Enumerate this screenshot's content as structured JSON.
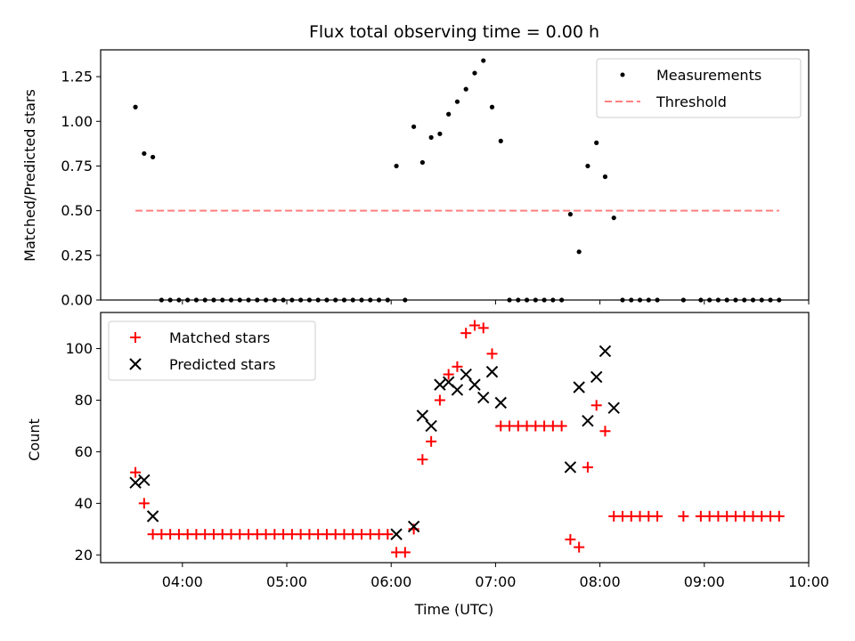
{
  "chart_data": [
    {
      "type": "scatter",
      "title": "Flux total observing time = 0.00 h",
      "xlabel": "",
      "ylabel": "Matched/Predicted stars",
      "ylim": [
        0,
        1.4
      ],
      "yticks": [
        "0.00",
        "0.25",
        "0.50",
        "0.75",
        "1.00",
        "1.25"
      ],
      "legend_position": "top-right",
      "series": [
        {
          "name": "Measurements",
          "marker": "dot",
          "color": "#000000",
          "points": [
            [
              "03:33",
              1.08
            ],
            [
              "03:38",
              0.82
            ],
            [
              "03:43",
              0.8
            ],
            [
              "03:48",
              0.0
            ],
            [
              "03:53",
              0.0
            ],
            [
              "03:58",
              0.0
            ],
            [
              "04:03",
              0.0
            ],
            [
              "04:08",
              0.0
            ],
            [
              "04:13",
              0.0
            ],
            [
              "04:18",
              0.0
            ],
            [
              "04:23",
              0.0
            ],
            [
              "04:28",
              0.0
            ],
            [
              "04:33",
              0.0
            ],
            [
              "04:38",
              0.0
            ],
            [
              "04:43",
              0.0
            ],
            [
              "04:48",
              0.0
            ],
            [
              "04:53",
              0.0
            ],
            [
              "04:58",
              0.0
            ],
            [
              "05:03",
              0.0
            ],
            [
              "05:08",
              0.0
            ],
            [
              "05:13",
              0.0
            ],
            [
              "05:18",
              0.0
            ],
            [
              "05:23",
              0.0
            ],
            [
              "05:28",
              0.0
            ],
            [
              "05:33",
              0.0
            ],
            [
              "05:38",
              0.0
            ],
            [
              "05:43",
              0.0
            ],
            [
              "05:48",
              0.0
            ],
            [
              "05:53",
              0.0
            ],
            [
              "05:58",
              0.0
            ],
            [
              "06:03",
              0.75
            ],
            [
              "06:08",
              0.0
            ],
            [
              "06:13",
              0.97
            ],
            [
              "06:18",
              0.77
            ],
            [
              "06:23",
              0.91
            ],
            [
              "06:28",
              0.93
            ],
            [
              "06:33",
              1.04
            ],
            [
              "06:38",
              1.11
            ],
            [
              "06:43",
              1.18
            ],
            [
              "06:48",
              1.27
            ],
            [
              "06:53",
              1.34
            ],
            [
              "06:58",
              1.08
            ],
            [
              "07:03",
              0.89
            ],
            [
              "07:08",
              0.0
            ],
            [
              "07:13",
              0.0
            ],
            [
              "07:18",
              0.0
            ],
            [
              "07:23",
              0.0
            ],
            [
              "07:28",
              0.0
            ],
            [
              "07:33",
              0.0
            ],
            [
              "07:38",
              0.0
            ],
            [
              "07:43",
              0.48
            ],
            [
              "07:48",
              0.27
            ],
            [
              "07:53",
              0.75
            ],
            [
              "07:58",
              0.88
            ],
            [
              "08:03",
              0.69
            ],
            [
              "08:08",
              0.46
            ],
            [
              "08:13",
              0.0
            ],
            [
              "08:18",
              0.0
            ],
            [
              "08:23",
              0.0
            ],
            [
              "08:28",
              0.0
            ],
            [
              "08:33",
              0.0
            ],
            [
              "08:48",
              0.0
            ],
            [
              "08:58",
              0.0
            ],
            [
              "09:03",
              0.0
            ],
            [
              "09:08",
              0.0
            ],
            [
              "09:13",
              0.0
            ],
            [
              "09:18",
              0.0
            ],
            [
              "09:23",
              0.0
            ],
            [
              "09:28",
              0.0
            ],
            [
              "09:33",
              0.0
            ],
            [
              "09:38",
              0.0
            ],
            [
              "09:43",
              0.0
            ]
          ]
        },
        {
          "name": "Threshold",
          "marker": "dashed-line",
          "color": "#ff7f7f",
          "points": [
            [
              "03:33",
              0.5
            ],
            [
              "09:43",
              0.5
            ]
          ]
        }
      ]
    },
    {
      "type": "scatter",
      "title": "",
      "xlabel": "Time (UTC)",
      "ylabel": "Count",
      "ylim": [
        17,
        114
      ],
      "yticks": [
        "20",
        "40",
        "60",
        "80",
        "100"
      ],
      "xlim": [
        "03:13",
        "10:00"
      ],
      "xticks": [
        "04:00",
        "05:00",
        "06:00",
        "07:00",
        "08:00",
        "09:00",
        "10:00"
      ],
      "legend_position": "top-left",
      "series": [
        {
          "name": "Matched stars",
          "marker": "plus",
          "color": "#ff0000",
          "points": [
            [
              "03:33",
              52
            ],
            [
              "03:38",
              40
            ],
            [
              "03:43",
              28
            ],
            [
              "03:48",
              28
            ],
            [
              "03:53",
              28
            ],
            [
              "03:58",
              28
            ],
            [
              "04:03",
              28
            ],
            [
              "04:08",
              28
            ],
            [
              "04:13",
              28
            ],
            [
              "04:18",
              28
            ],
            [
              "04:23",
              28
            ],
            [
              "04:28",
              28
            ],
            [
              "04:33",
              28
            ],
            [
              "04:38",
              28
            ],
            [
              "04:43",
              28
            ],
            [
              "04:48",
              28
            ],
            [
              "04:53",
              28
            ],
            [
              "04:58",
              28
            ],
            [
              "05:03",
              28
            ],
            [
              "05:08",
              28
            ],
            [
              "05:13",
              28
            ],
            [
              "05:18",
              28
            ],
            [
              "05:23",
              28
            ],
            [
              "05:28",
              28
            ],
            [
              "05:33",
              28
            ],
            [
              "05:38",
              28
            ],
            [
              "05:43",
              28
            ],
            [
              "05:48",
              28
            ],
            [
              "05:53",
              28
            ],
            [
              "05:58",
              28
            ],
            [
              "06:03",
              21
            ],
            [
              "06:08",
              21
            ],
            [
              "06:13",
              30
            ],
            [
              "06:18",
              57
            ],
            [
              "06:23",
              64
            ],
            [
              "06:28",
              80
            ],
            [
              "06:33",
              90
            ],
            [
              "06:38",
              93
            ],
            [
              "06:43",
              106
            ],
            [
              "06:48",
              109
            ],
            [
              "06:53",
              108
            ],
            [
              "06:58",
              98
            ],
            [
              "07:03",
              70
            ],
            [
              "07:08",
              70
            ],
            [
              "07:13",
              70
            ],
            [
              "07:18",
              70
            ],
            [
              "07:23",
              70
            ],
            [
              "07:28",
              70
            ],
            [
              "07:33",
              70
            ],
            [
              "07:38",
              70
            ],
            [
              "07:43",
              26
            ],
            [
              "07:48",
              23
            ],
            [
              "07:53",
              54
            ],
            [
              "07:58",
              78
            ],
            [
              "08:03",
              68
            ],
            [
              "08:08",
              35
            ],
            [
              "08:13",
              35
            ],
            [
              "08:18",
              35
            ],
            [
              "08:23",
              35
            ],
            [
              "08:28",
              35
            ],
            [
              "08:33",
              35
            ],
            [
              "08:48",
              35
            ],
            [
              "08:58",
              35
            ],
            [
              "09:03",
              35
            ],
            [
              "09:08",
              35
            ],
            [
              "09:13",
              35
            ],
            [
              "09:18",
              35
            ],
            [
              "09:23",
              35
            ],
            [
              "09:28",
              35
            ],
            [
              "09:33",
              35
            ],
            [
              "09:38",
              35
            ],
            [
              "09:43",
              35
            ]
          ]
        },
        {
          "name": "Predicted stars",
          "marker": "cross",
          "color": "#000000",
          "points": [
            [
              "03:33",
              48
            ],
            [
              "03:38",
              49
            ],
            [
              "03:43",
              35
            ],
            [
              "06:03",
              28
            ],
            [
              "06:13",
              31
            ],
            [
              "06:18",
              74
            ],
            [
              "06:23",
              70
            ],
            [
              "06:28",
              86
            ],
            [
              "06:33",
              87
            ],
            [
              "06:38",
              84
            ],
            [
              "06:43",
              90
            ],
            [
              "06:48",
              86
            ],
            [
              "06:53",
              81
            ],
            [
              "06:58",
              91
            ],
            [
              "07:03",
              79
            ],
            [
              "07:43",
              54
            ],
            [
              "07:48",
              85
            ],
            [
              "07:53",
              72
            ],
            [
              "07:58",
              89
            ],
            [
              "08:03",
              99
            ],
            [
              "08:08",
              77
            ]
          ]
        }
      ]
    }
  ]
}
